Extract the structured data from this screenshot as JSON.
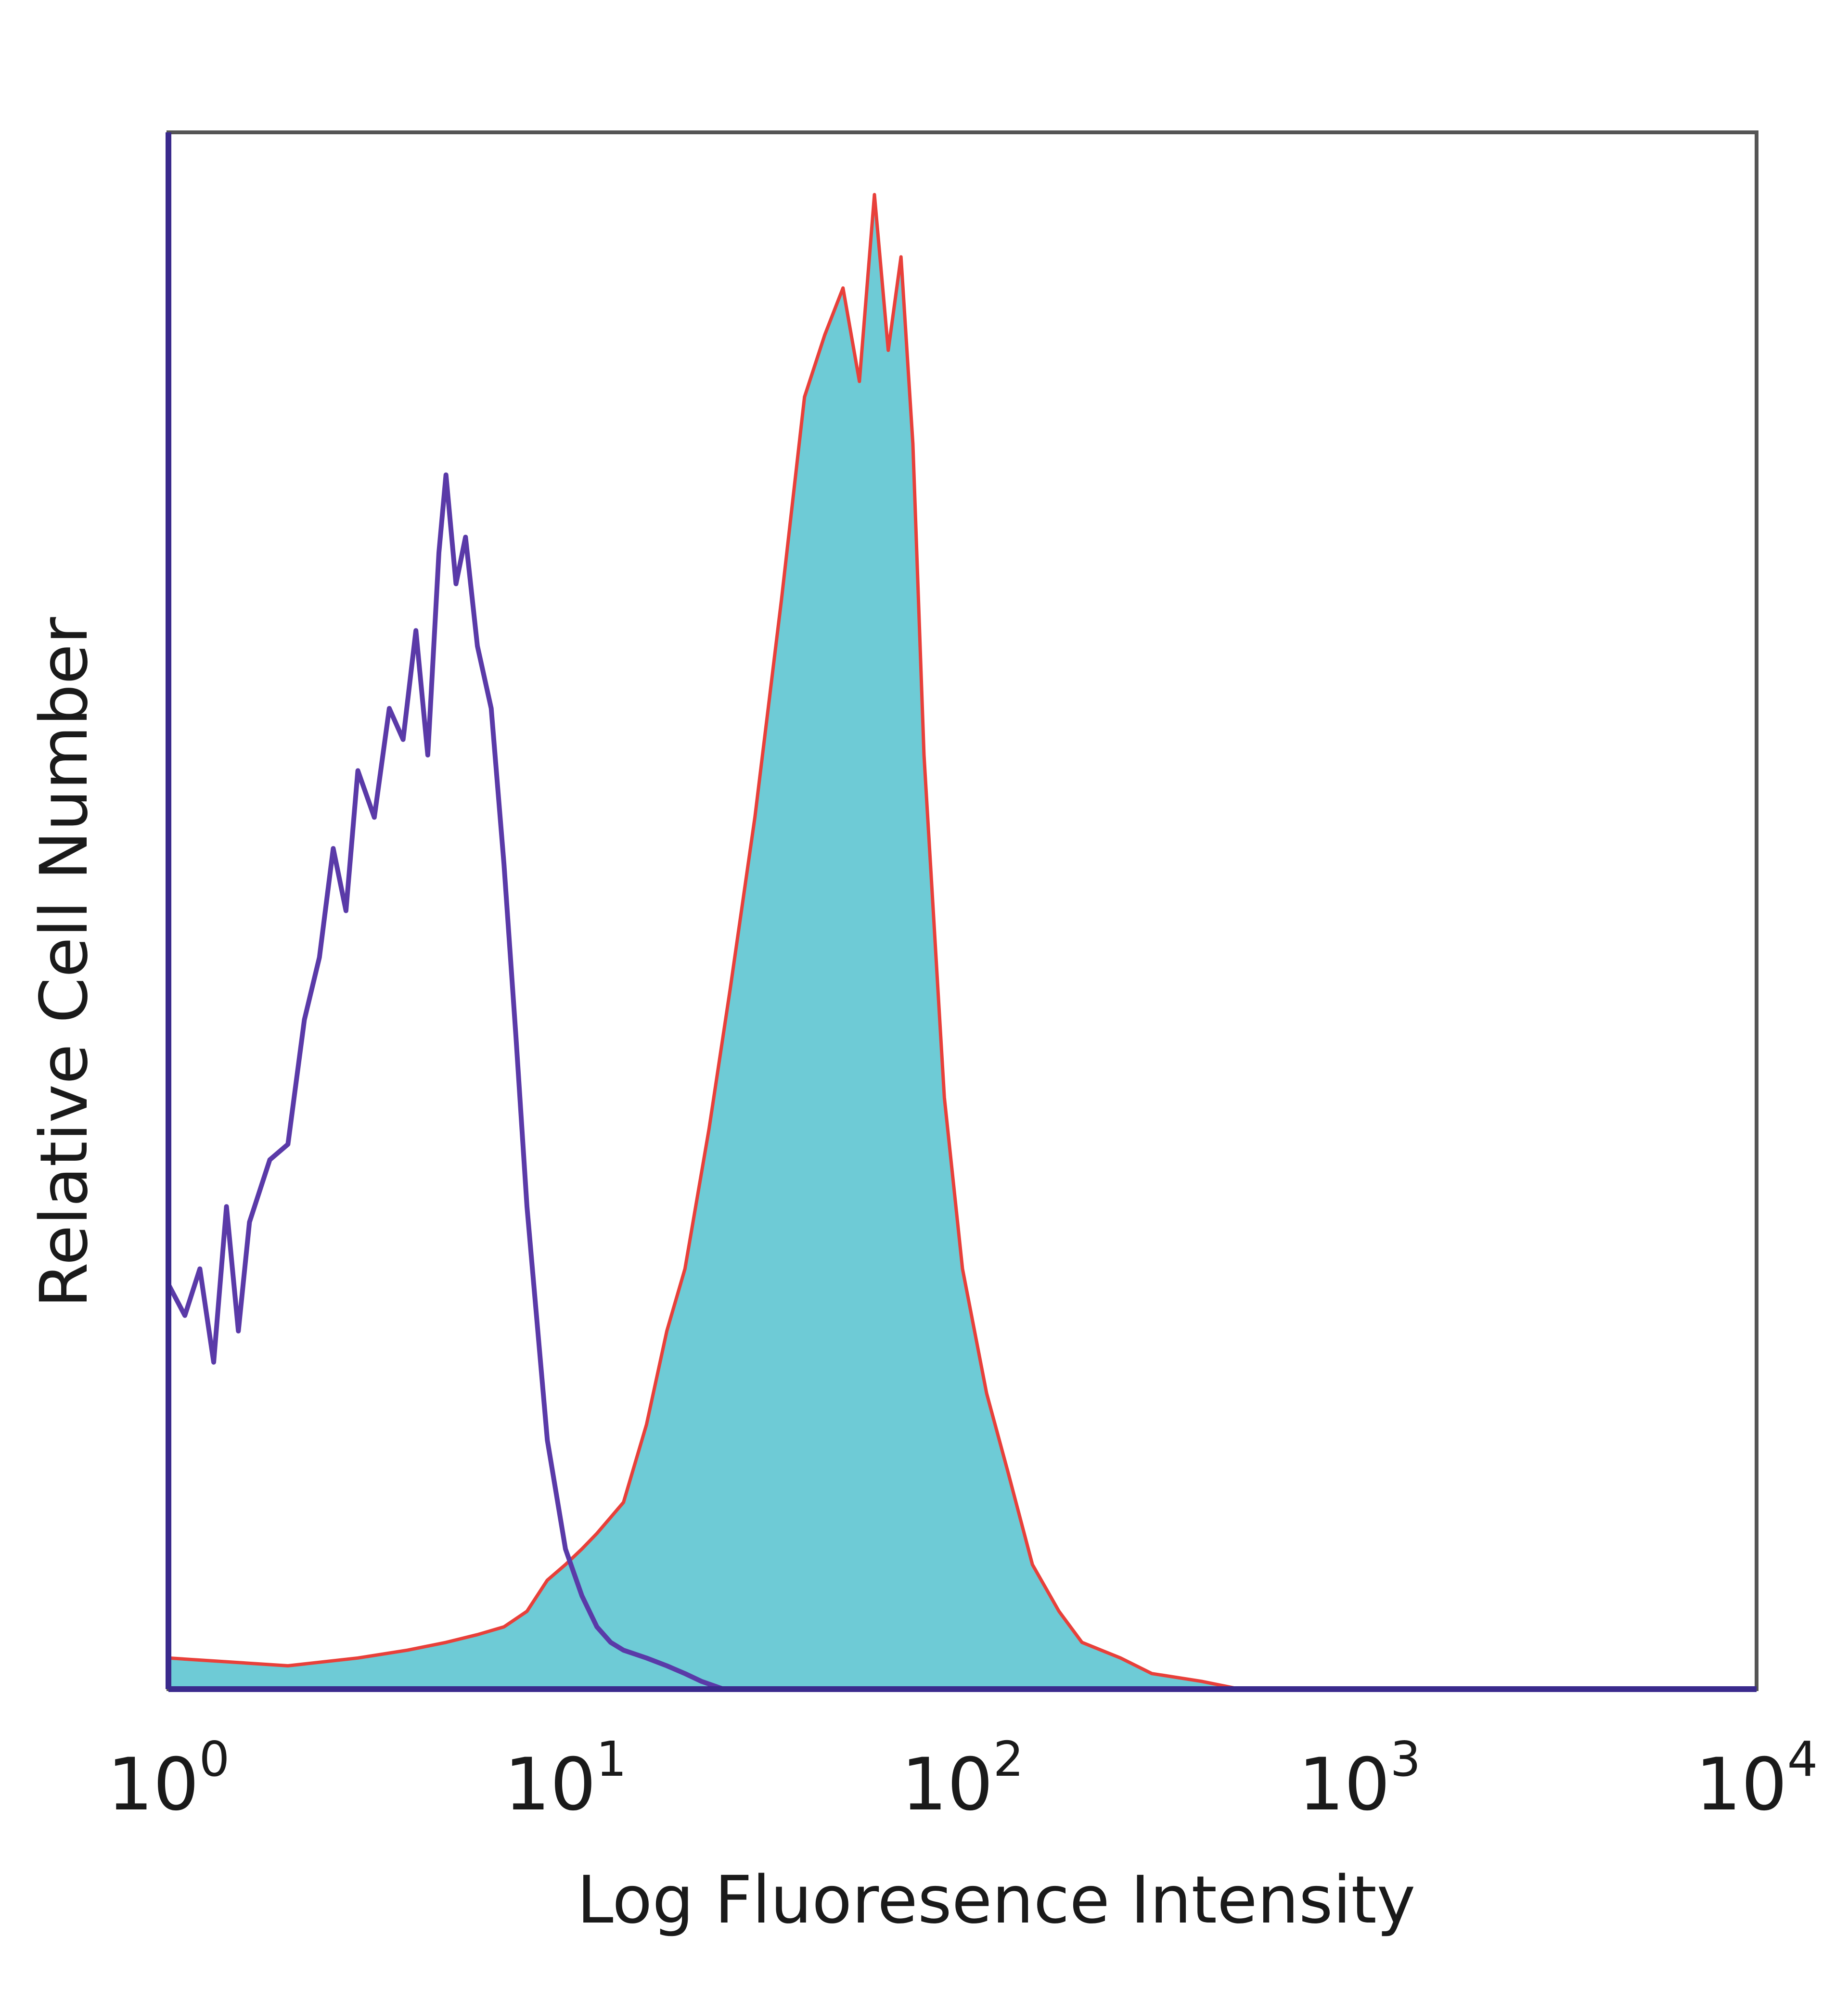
{
  "chart_data": {
    "type": "area",
    "xlabel": "Log Fluoresence Intensity",
    "ylabel": "Relative Cell Number",
    "x_scale": "log",
    "xlim": [
      1,
      10000
    ],
    "ylim": [
      0,
      1
    ],
    "grid": false,
    "legend": "none",
    "xticks": [
      {
        "base": "10",
        "exp": "0"
      },
      {
        "base": "10",
        "exp": "1"
      },
      {
        "base": "10",
        "exp": "2"
      },
      {
        "base": "10",
        "exp": "3"
      },
      {
        "base": "10",
        "exp": "4"
      }
    ],
    "series": [
      {
        "style": "outline",
        "color": "#5a3aa8",
        "x": [
          1.0,
          1.1,
          1.2,
          1.3,
          1.4,
          1.5,
          1.6,
          1.8,
          2.0,
          2.2,
          2.4,
          2.6,
          2.8,
          3.0,
          3.3,
          3.6,
          3.9,
          4.2,
          4.5,
          4.8,
          5.0,
          5.3,
          5.6,
          6.0,
          6.5,
          7.0,
          7.5,
          8.0,
          9.0,
          10.0,
          11.0,
          12.0,
          13.0,
          14.0,
          16.0,
          18.0,
          20.0,
          22.0,
          25.0
        ],
        "y": [
          0.26,
          0.24,
          0.27,
          0.21,
          0.31,
          0.23,
          0.3,
          0.34,
          0.35,
          0.43,
          0.47,
          0.54,
          0.5,
          0.59,
          0.56,
          0.63,
          0.61,
          0.68,
          0.6,
          0.73,
          0.78,
          0.71,
          0.74,
          0.67,
          0.63,
          0.53,
          0.42,
          0.31,
          0.16,
          0.09,
          0.06,
          0.04,
          0.03,
          0.025,
          0.02,
          0.015,
          0.01,
          0.005,
          0.0
        ]
      },
      {
        "style": "filled",
        "color": "#6ecbd6",
        "stroke": "#e8403a",
        "x": [
          1.0,
          2.0,
          3.0,
          4.0,
          5.0,
          6.0,
          7.0,
          8.0,
          9.0,
          10.0,
          11.0,
          12.0,
          14.0,
          16.0,
          18.0,
          20.0,
          23.0,
          26.0,
          30.0,
          35.0,
          40.0,
          45.0,
          50.0,
          55.0,
          60.0,
          65.0,
          70.0,
          75.0,
          80.0,
          90.0,
          100.0,
          115.0,
          130.0,
          150.0,
          175.0,
          200.0,
          250.0,
          300.0,
          400.0,
          500.0
        ],
        "y": [
          0.02,
          0.015,
          0.02,
          0.025,
          0.03,
          0.035,
          0.04,
          0.05,
          0.07,
          0.08,
          0.09,
          0.1,
          0.12,
          0.17,
          0.23,
          0.27,
          0.36,
          0.45,
          0.56,
          0.7,
          0.83,
          0.87,
          0.9,
          0.84,
          0.96,
          0.86,
          0.92,
          0.8,
          0.6,
          0.38,
          0.27,
          0.19,
          0.14,
          0.08,
          0.05,
          0.03,
          0.02,
          0.01,
          0.005,
          0.0
        ]
      }
    ]
  }
}
